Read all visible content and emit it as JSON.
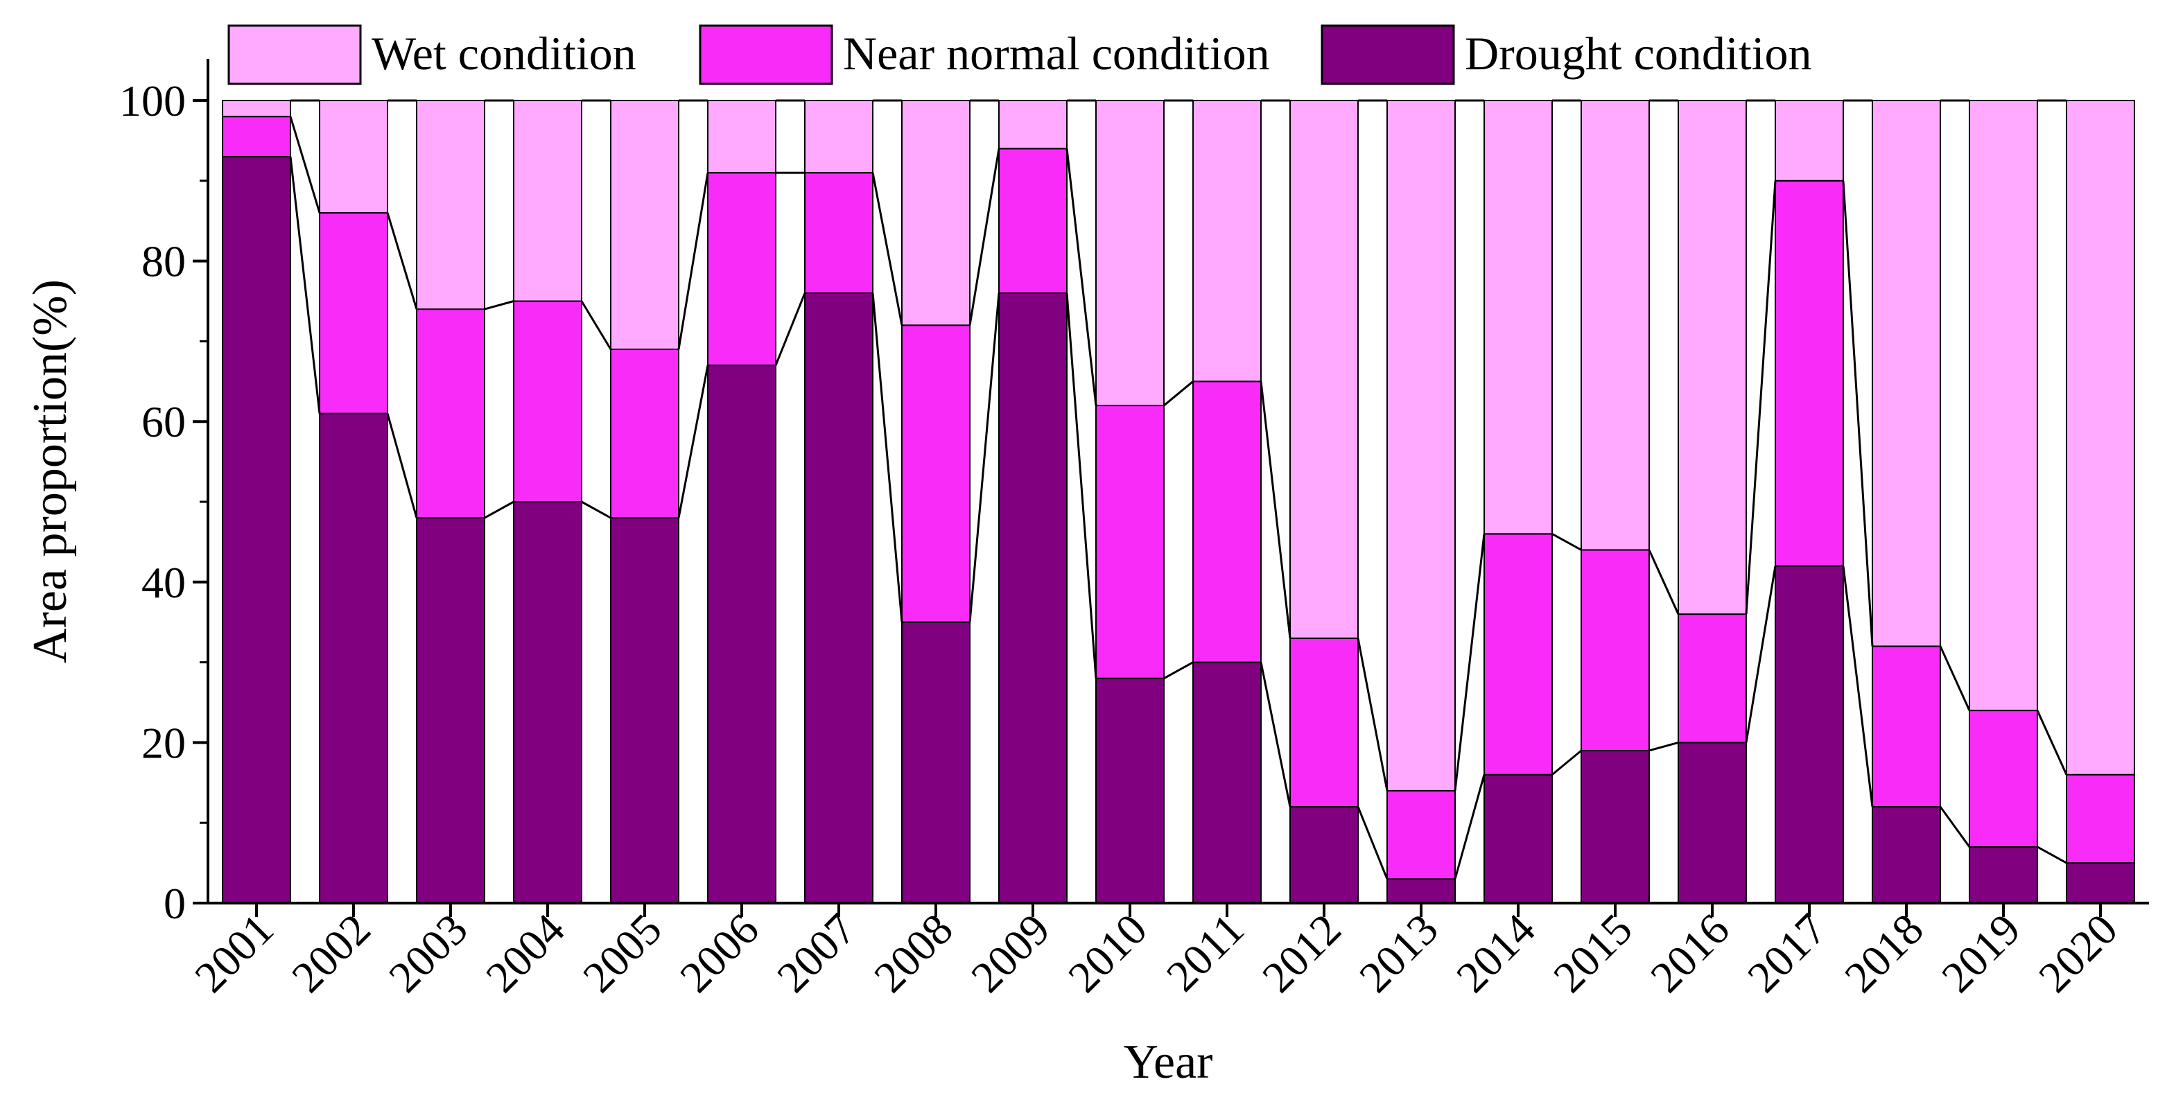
{
  "chart_data": {
    "type": "bar",
    "stacked": true,
    "title": "",
    "xlabel": "Year",
    "ylabel": "Area proportion(%)",
    "ylim": [
      0,
      100
    ],
    "yticks": [
      0,
      20,
      40,
      60,
      80,
      100
    ],
    "legend_position": "top",
    "categories": [
      "2001",
      "2002",
      "2003",
      "2004",
      "2005",
      "2006",
      "2007",
      "2008",
      "2009",
      "2010",
      "2011",
      "2012",
      "2013",
      "2014",
      "2015",
      "2016",
      "2017",
      "2018",
      "2019",
      "2020"
    ],
    "series": [
      {
        "name": "Drought condition",
        "color": "#800080",
        "values": [
          93,
          61,
          48,
          50,
          48,
          67,
          76,
          35,
          76,
          28,
          30,
          12,
          3,
          16,
          19,
          20,
          42,
          12,
          7,
          5
        ]
      },
      {
        "name": "Near normal condition",
        "color": "#f92bf9",
        "values": [
          5,
          25,
          26,
          25,
          21,
          24,
          15,
          37,
          18,
          34,
          35,
          21,
          11,
          30,
          25,
          16,
          48,
          20,
          17,
          11
        ]
      },
      {
        "name": "Wet condition",
        "color": "#ffaaff",
        "values": [
          2,
          14,
          26,
          25,
          31,
          9,
          9,
          28,
          6,
          38,
          35,
          67,
          86,
          54,
          56,
          64,
          10,
          68,
          76,
          84
        ]
      }
    ],
    "legend": [
      {
        "label": "Wet condition",
        "color": "#ffaaff"
      },
      {
        "label": "Near normal condition",
        "color": "#f92bf9"
      },
      {
        "label": "Drought condition",
        "color": "#800080"
      }
    ]
  }
}
